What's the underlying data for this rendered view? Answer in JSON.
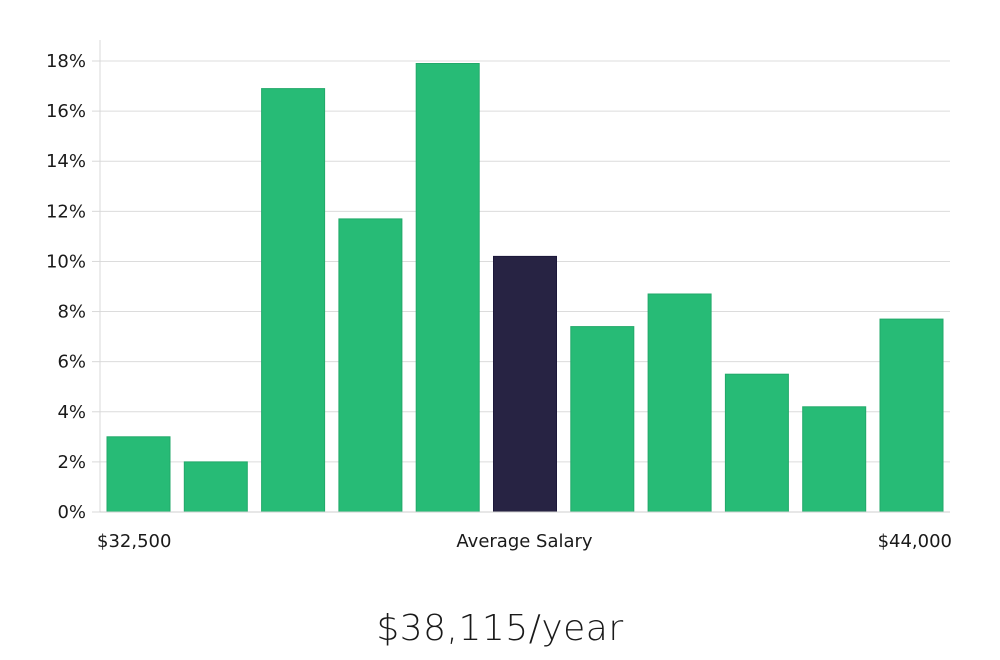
{
  "colors": {
    "bar": "#27bb76",
    "bar_highlight": "#272343",
    "grid": "#dcdcdc",
    "text": "#1a1a1a"
  },
  "chart_data": {
    "type": "bar",
    "title": "",
    "xlabel": "Average Salary",
    "ylabel": "",
    "x_range_labels": {
      "min": "$32,500",
      "center": "Average Salary",
      "max": "$44,000"
    },
    "ylim": [
      0,
      18
    ],
    "y_ticks": [
      0,
      2,
      4,
      6,
      8,
      10,
      12,
      14,
      16,
      18
    ],
    "y_tick_format": "percent",
    "grid": true,
    "values": [
      3.0,
      2.0,
      16.9,
      11.7,
      17.9,
      10.2,
      7.4,
      8.7,
      5.5,
      4.2,
      7.7
    ],
    "highlight_index": 5
  },
  "salary": {
    "display": "$38,115/year"
  }
}
